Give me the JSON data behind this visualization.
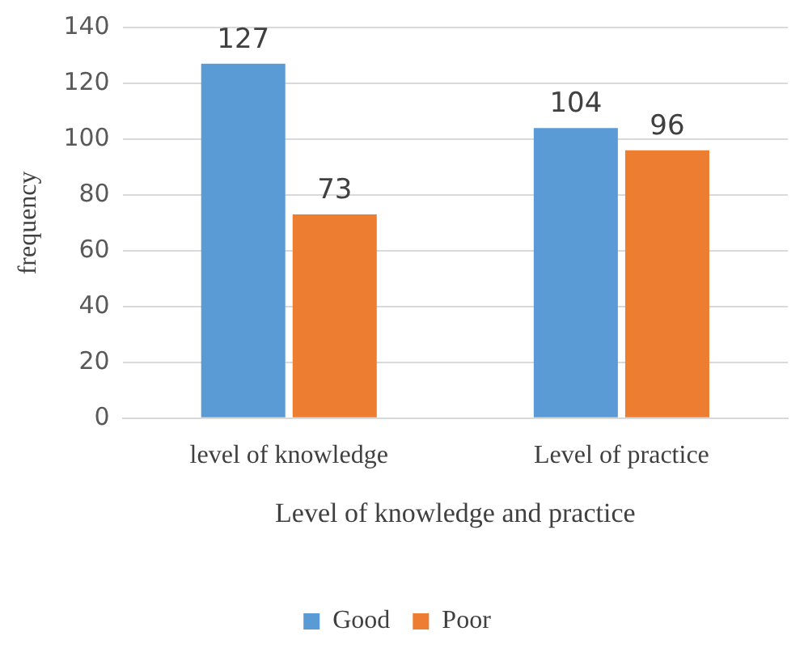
{
  "chart_data": {
    "type": "bar",
    "xlabel": "Level of knowledge and practice",
    "ylabel": "frequency",
    "categories": [
      "level of knowledge",
      "Level of practice"
    ],
    "series": [
      {
        "name": "Good",
        "color": "#5b9bd5",
        "values": [
          127,
          104
        ]
      },
      {
        "name": "Poor",
        "color": "#ed7d31",
        "values": [
          73,
          96
        ]
      }
    ],
    "ylim": [
      0,
      140
    ],
    "yticks": [
      0,
      20,
      40,
      60,
      80,
      100,
      120,
      140
    ],
    "grid": "y",
    "legend": "bottom",
    "data_labels": true
  }
}
